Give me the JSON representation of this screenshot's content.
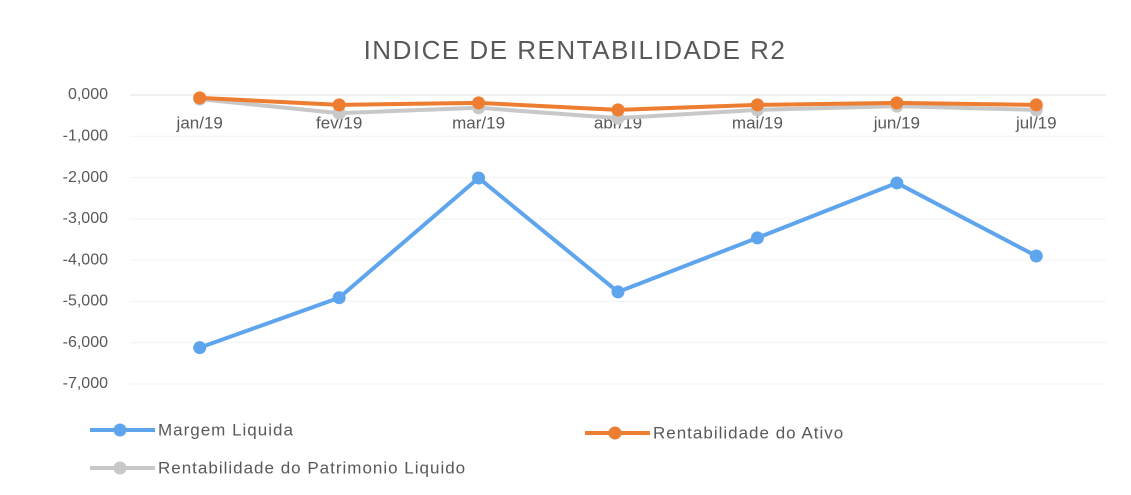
{
  "chart_data": {
    "type": "line",
    "title": "INDICE DE RENTABILIDADE R2",
    "categories": [
      "jan/19",
      "fev/19",
      "mar/19",
      "abr/19",
      "mai/19",
      "jun/19",
      "jul/19"
    ],
    "series": [
      {
        "name": "Margem Liquida",
        "color": "#5fa5ee",
        "values": [
          -6.12,
          -4.91,
          -2.01,
          -4.77,
          -3.46,
          -2.13,
          -3.9
        ]
      },
      {
        "name": "Rentabilidade do Ativo",
        "color": "#ed7d31",
        "values": [
          -0.07,
          -0.24,
          -0.19,
          -0.36,
          -0.24,
          -0.19,
          -0.24
        ]
      },
      {
        "name": "Rentabilidade do Patrimonio Liquido",
        "color": "#c8c8c8",
        "values": [
          -0.1,
          -0.44,
          -0.31,
          -0.56,
          -0.36,
          -0.27,
          -0.36
        ]
      }
    ],
    "ylim": [
      -7,
      0
    ],
    "yticks": [
      {
        "value": 0,
        "label": "0,000"
      },
      {
        "value": -1,
        "label": "-1,000"
      },
      {
        "value": -2,
        "label": "-2,000"
      },
      {
        "value": -3,
        "label": "-3,000"
      },
      {
        "value": -4,
        "label": "-4,000"
      },
      {
        "value": -5,
        "label": "-5,000"
      },
      {
        "value": -6,
        "label": "-6,000"
      },
      {
        "value": -7,
        "label": "-7,000"
      }
    ],
    "grid": true,
    "legend": "bottom"
  }
}
